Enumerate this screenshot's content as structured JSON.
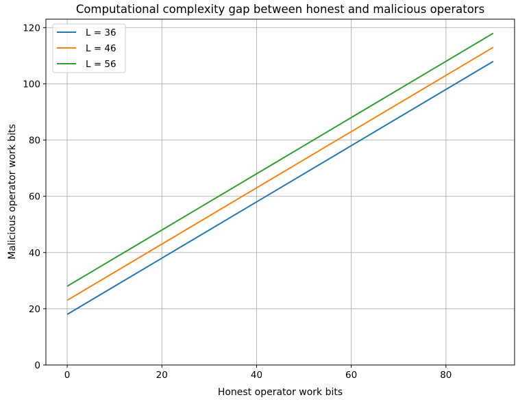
{
  "chart_data": {
    "type": "line",
    "title": "Computational complexity gap between honest and malicious operators",
    "xlabel": "Honest operator work bits",
    "ylabel": "Malicious operator work bits",
    "xlim": [
      -4.5,
      94.5
    ],
    "ylim": [
      0,
      123
    ],
    "xticks": [
      0,
      20,
      40,
      60,
      80
    ],
    "yticks": [
      0,
      20,
      40,
      60,
      80,
      100,
      120
    ],
    "grid": true,
    "legend_position": "top-left",
    "x": [
      0,
      90
    ],
    "series": [
      {
        "name": "L = 36",
        "color": "#1f77b4",
        "values": [
          18,
          108
        ]
      },
      {
        "name": "L = 46",
        "color": "#ff7f0e",
        "values": [
          23,
          113
        ]
      },
      {
        "name": "L = 56",
        "color": "#2ca02c",
        "values": [
          28,
          118
        ]
      }
    ]
  }
}
